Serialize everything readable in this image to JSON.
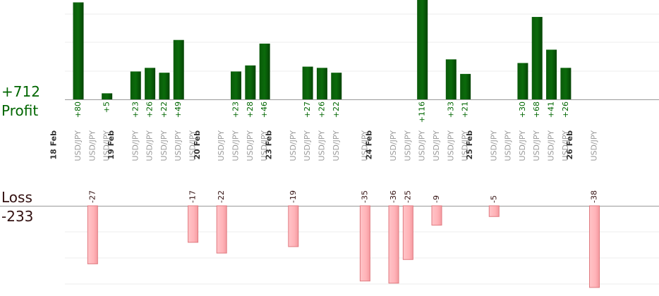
{
  "summary": {
    "profit_total": "+712",
    "profit_label": "Profit",
    "loss_label": "Loss",
    "loss_total": "-233"
  },
  "colors": {
    "profit_fill": "#0b6b0b",
    "profit_text": "#006600",
    "loss_fill": "#ffb3b8",
    "loss_stroke": "#e07a80",
    "loss_text": "#331111"
  },
  "chart_data": {
    "type": "bar",
    "symbol": "USD/JPY",
    "days": [
      {
        "date": "18 Feb",
        "profits": [
          80,
          null,
          5
        ],
        "losses": [
          null,
          -27,
          null
        ]
      },
      {
        "date": "19 Feb",
        "profits": [
          23,
          26,
          22,
          49,
          null
        ],
        "losses": [
          null,
          null,
          null,
          null,
          -17
        ]
      },
      {
        "date": "20 Feb",
        "profits": [
          null,
          23,
          28,
          46
        ],
        "losses": [
          -22,
          null,
          null,
          null
        ]
      },
      {
        "date": "23 Feb",
        "profits": [
          null,
          27,
          26,
          22
        ],
        "losses": [
          -19,
          null,
          null,
          null
        ]
      },
      {
        "date": "",
        "profits": [
          null
        ],
        "losses": [
          -35
        ]
      },
      {
        "date": "24 Feb",
        "profits": [
          null,
          null,
          116,
          null,
          33,
          21
        ],
        "losses": [
          -36,
          -25,
          null,
          -9,
          null,
          null
        ]
      },
      {
        "date": "25 Feb",
        "profits": [
          null,
          null,
          30,
          68,
          41,
          26
        ],
        "losses": [
          -5,
          null,
          null,
          null,
          null,
          null
        ]
      },
      {
        "date": "26 Feb",
        "profits": [
          null
        ],
        "losses": [
          -38
        ]
      }
    ]
  }
}
